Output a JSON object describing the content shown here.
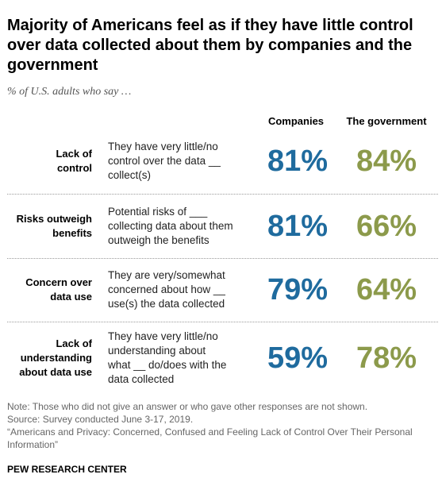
{
  "title": "Majority of Americans feel as if they have little control over data collected about them by companies and the government",
  "subtitle": "% of U.S. adults who say …",
  "columns": [
    "Companies",
    "The government"
  ],
  "colors": {
    "companies": "#1f6b9e",
    "government": "#8c9a4b"
  },
  "rows": [
    {
      "label": [
        "Lack of",
        "control"
      ],
      "description": [
        "They have very little/no",
        "control over the data __",
        "collect(s)"
      ],
      "companies": "81%",
      "government": "84%"
    },
    {
      "label": [
        "Risks outweigh",
        "benefits"
      ],
      "description": [
        "Potential risks of ___",
        "collecting data about them",
        "outweigh the benefits"
      ],
      "companies": "81%",
      "government": "66%"
    },
    {
      "label": [
        "Concern over",
        "data use"
      ],
      "description": [
        "They are very/somewhat",
        "concerned about how __",
        "use(s) the data collected"
      ],
      "companies": "79%",
      "government": "64%"
    },
    {
      "label": [
        "Lack of",
        "understanding",
        "about data use"
      ],
      "description": [
        "They have very little/no",
        "understanding about",
        "what __ do/does with the",
        "data collected"
      ],
      "companies": "59%",
      "government": "78%"
    }
  ],
  "notes": [
    "Note: Those who did not give an answer or who gave other responses are not shown.",
    "Source: Survey conducted June 3-17, 2019.",
    "“Americans and Privacy: Concerned, Confused and Feeling Lack of Control Over Their Personal Information”"
  ],
  "footer": "PEW RESEARCH CENTER",
  "chart_data": {
    "type": "table",
    "title": "Majority of Americans feel as if they have little control over data collected about them by companies and the government",
    "subtitle": "% of U.S. adults who say …",
    "categories": [
      "Lack of control",
      "Risks outweigh benefits",
      "Concern over data use",
      "Lack of understanding about data use"
    ],
    "series": [
      {
        "name": "Companies",
        "values": [
          81,
          81,
          79,
          59
        ]
      },
      {
        "name": "The government",
        "values": [
          84,
          66,
          64,
          78
        ]
      }
    ]
  }
}
